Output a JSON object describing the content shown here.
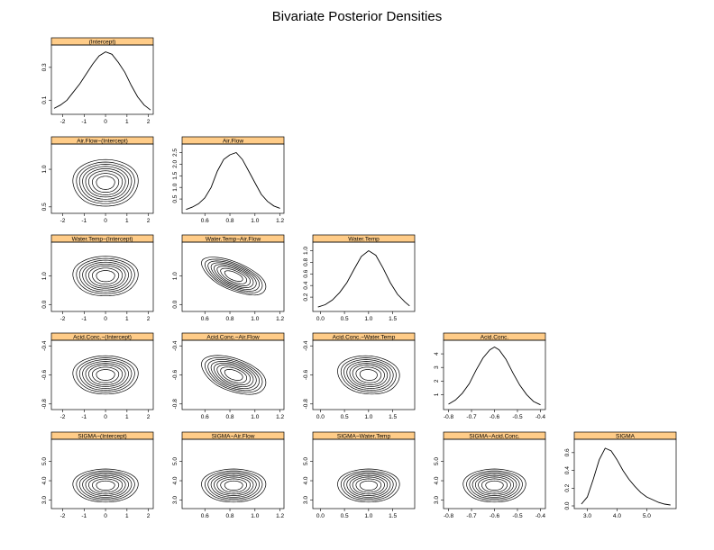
{
  "page": {
    "title": "Bivariate Posterior Densities"
  },
  "colors": {
    "strip": "#FFCC88",
    "line": "#000000",
    "background": "#FFFFFF"
  },
  "variables": [
    {
      "key": "intercept",
      "label": "(Intercept)",
      "ticks": [
        -2,
        -1,
        0,
        1,
        2
      ],
      "tick_labels": [
        "-2",
        "-1",
        "0",
        "1",
        "2"
      ],
      "xlim": [
        -2.4,
        2.1
      ],
      "density_ticks": [
        0.1,
        0.3
      ],
      "density_tick_labels": [
        "0.1",
        "0.3"
      ],
      "density_ylim": [
        0.03,
        0.42
      ]
    },
    {
      "key": "airflow",
      "label": "Air.Flow",
      "ticks": [
        0.6,
        0.8,
        1.0,
        1.2
      ],
      "tick_labels": [
        "0.6",
        "0.8",
        "1.0",
        "1.2"
      ],
      "xlim": [
        0.44,
        1.21
      ],
      "density_ticks": [
        0.5,
        1.0,
        1.5,
        2.0,
        2.5
      ],
      "density_tick_labels": [
        "0.5",
        "1.0",
        "1.5",
        "2.0",
        "2.5"
      ],
      "density_ylim": [
        0.0,
        2.75
      ]
    },
    {
      "key": "watertemp",
      "label": "Water.Temp",
      "ticks": [
        0.0,
        0.5,
        1.0,
        1.5
      ],
      "tick_labels": [
        "0.0",
        "0.5",
        "1.0",
        "1.5"
      ],
      "xlim": [
        -0.1,
        1.9
      ],
      "density_ticks": [
        0.2,
        0.4,
        0.6,
        0.8,
        1.0
      ],
      "density_tick_labels": [
        "0.2",
        "0.4",
        "0.6",
        "0.8",
        "1.0"
      ],
      "density_ylim": [
        0.0,
        1.1
      ]
    },
    {
      "key": "acidconc",
      "label": "Acid.Conc.",
      "ticks": [
        -0.8,
        -0.7,
        -0.6,
        -0.5,
        -0.4
      ],
      "tick_labels": [
        "-0.8",
        "-0.7",
        "-0.6",
        "-0.5",
        "-0.4"
      ],
      "xlim": [
        -0.81,
        -0.39
      ],
      "density_ticks": [
        1,
        2,
        3,
        4
      ],
      "density_tick_labels": [
        "1",
        "2",
        "3",
        "4"
      ],
      "density_ylim": [
        0.1,
        4.8
      ]
    },
    {
      "key": "sigma",
      "label": "SIGMA",
      "ticks": [
        3.0,
        4.0,
        5.0
      ],
      "tick_labels": [
        "3.0",
        "4.0",
        "5.0"
      ],
      "xlim": [
        2.65,
        5.9
      ],
      "density_ticks": [
        0.0,
        0.2,
        0.4,
        0.6
      ],
      "density_tick_labels": [
        "0.0",
        "0.2",
        "0.4",
        "0.6"
      ],
      "density_ylim": [
        0.0,
        0.72
      ]
    }
  ],
  "chart_data": {
    "type": "pairs-density",
    "title": "Bivariate Posterior Densities",
    "diagonal": [
      {
        "label": "(Intercept)",
        "x": [
          -2.4,
          -2.1,
          -1.8,
          -1.5,
          -1.2,
          -0.9,
          -0.6,
          -0.3,
          0.0,
          0.3,
          0.6,
          0.9,
          1.2,
          1.5,
          1.8,
          2.1
        ],
        "y": [
          0.05,
          0.07,
          0.1,
          0.15,
          0.2,
          0.26,
          0.32,
          0.37,
          0.395,
          0.38,
          0.33,
          0.27,
          0.19,
          0.12,
          0.07,
          0.04
        ]
      },
      {
        "label": "Air.Flow",
        "x": [
          0.45,
          0.5,
          0.55,
          0.6,
          0.65,
          0.7,
          0.75,
          0.8,
          0.85,
          0.9,
          0.95,
          1.0,
          1.05,
          1.1,
          1.15,
          1.2
        ],
        "y": [
          0.05,
          0.15,
          0.3,
          0.55,
          1.0,
          1.7,
          2.2,
          2.4,
          2.5,
          2.2,
          1.7,
          1.2,
          0.7,
          0.4,
          0.2,
          0.1
        ]
      },
      {
        "label": "Water.Temp",
        "x": [
          -0.05,
          0.1,
          0.25,
          0.4,
          0.55,
          0.7,
          0.85,
          1.0,
          1.15,
          1.3,
          1.45,
          1.6,
          1.75,
          1.85
        ],
        "y": [
          0.03,
          0.07,
          0.15,
          0.28,
          0.45,
          0.68,
          0.9,
          1.0,
          0.92,
          0.7,
          0.45,
          0.25,
          0.12,
          0.05
        ]
      },
      {
        "label": "Acid.Conc.",
        "x": [
          -0.8,
          -0.77,
          -0.74,
          -0.71,
          -0.68,
          -0.65,
          -0.62,
          -0.6,
          -0.58,
          -0.55,
          -0.52,
          -0.49,
          -0.46,
          -0.43,
          -0.4
        ],
        "y": [
          0.3,
          0.6,
          1.1,
          1.8,
          2.8,
          3.7,
          4.3,
          4.5,
          4.3,
          3.6,
          2.6,
          1.7,
          1.0,
          0.5,
          0.25
        ]
      },
      {
        "label": "SIGMA",
        "x": [
          2.8,
          3.0,
          3.2,
          3.4,
          3.6,
          3.8,
          4.0,
          4.2,
          4.4,
          4.6,
          4.8,
          5.0,
          5.2,
          5.4,
          5.6,
          5.8
        ],
        "y": [
          0.02,
          0.1,
          0.3,
          0.52,
          0.65,
          0.62,
          0.52,
          0.4,
          0.3,
          0.22,
          0.15,
          0.1,
          0.07,
          0.04,
          0.02,
          0.01
        ]
      }
    ],
    "pairs": [
      {
        "row": 1,
        "col": 0,
        "label": "Air.Flow~(Intercept)",
        "center": [
          0.0,
          0.82
        ],
        "sd": [
          0.95,
          0.2
        ],
        "rho": 0.0,
        "ylim": [
          0.45,
          1.3
        ],
        "ticks": [
          0.5,
          1.0
        ],
        "tick_labels": [
          "0.5",
          "1.0"
        ]
      },
      {
        "row": 2,
        "col": 0,
        "label": "Water.Temp~(Intercept)",
        "center": [
          0.0,
          1.0
        ],
        "sd": [
          0.95,
          0.45
        ],
        "rho": 0.0,
        "ylim": [
          -0.15,
          2.1
        ],
        "ticks": [
          0.0,
          1.0
        ],
        "tick_labels": [
          "0.0",
          "1.0"
        ]
      },
      {
        "row": 2,
        "col": 1,
        "label": "Water.Temp~Air.Flow",
        "center": [
          0.83,
          1.0
        ],
        "sd": [
          0.16,
          0.42
        ],
        "rho": -0.6,
        "ylim": [
          -0.15,
          2.1
        ],
        "ticks": [
          0.0,
          1.0
        ],
        "tick_labels": [
          "0.0",
          "1.0"
        ]
      },
      {
        "row": 3,
        "col": 0,
        "label": "Acid.Conc.~(Intercept)",
        "center": [
          0.0,
          -0.6
        ],
        "sd": [
          0.95,
          0.085
        ],
        "rho": 0.0,
        "ylim": [
          -0.82,
          -0.38
        ],
        "ticks": [
          -0.8,
          -0.6,
          -0.4
        ],
        "tick_labels": [
          "-0.8",
          "-0.6",
          "-0.4"
        ]
      },
      {
        "row": 3,
        "col": 1,
        "label": "Acid.Conc.~Air.Flow",
        "center": [
          0.83,
          -0.6
        ],
        "sd": [
          0.16,
          0.085
        ],
        "rho": -0.45,
        "ylim": [
          -0.82,
          -0.38
        ],
        "ticks": [
          -0.8,
          -0.6,
          -0.4
        ],
        "tick_labels": [
          "-0.8",
          "-0.6",
          "-0.4"
        ]
      },
      {
        "row": 3,
        "col": 2,
        "label": "Acid.Conc.~Water.Temp",
        "center": [
          1.0,
          -0.6
        ],
        "sd": [
          0.4,
          0.085
        ],
        "rho": -0.1,
        "ylim": [
          -0.82,
          -0.38
        ],
        "ticks": [
          -0.8,
          -0.6,
          -0.4
        ],
        "tick_labels": [
          "-0.8",
          "-0.6",
          "-0.4"
        ]
      },
      {
        "row": 4,
        "col": 0,
        "label": "SIGMA~(Intercept)",
        "center": [
          0.0,
          3.75
        ],
        "sd": [
          0.95,
          0.55
        ],
        "rho": 0.0,
        "ylim": [
          2.7,
          6.0
        ],
        "ticks": [
          3.0,
          4.0,
          5.0
        ],
        "tick_labels": [
          "3.0",
          "4.0",
          "5.0"
        ]
      },
      {
        "row": 4,
        "col": 1,
        "label": "SIGMA~Air.Flow",
        "center": [
          0.83,
          3.75
        ],
        "sd": [
          0.16,
          0.55
        ],
        "rho": 0.0,
        "ylim": [
          2.7,
          6.0
        ],
        "ticks": [
          3.0,
          4.0,
          5.0
        ],
        "tick_labels": [
          "3.0",
          "4.0",
          "5.0"
        ]
      },
      {
        "row": 4,
        "col": 2,
        "label": "SIGMA~Water.Temp",
        "center": [
          1.0,
          3.75
        ],
        "sd": [
          0.4,
          0.55
        ],
        "rho": 0.0,
        "ylim": [
          2.7,
          6.0
        ],
        "ticks": [
          3.0,
          4.0,
          5.0
        ],
        "tick_labels": [
          "3.0",
          "4.0",
          "5.0"
        ]
      },
      {
        "row": 4,
        "col": 3,
        "label": "SIGMA~Acid.Conc.",
        "center": [
          -0.6,
          3.75
        ],
        "sd": [
          0.085,
          0.55
        ],
        "rho": 0.0,
        "ylim": [
          2.7,
          6.0
        ],
        "ticks": [
          3.0,
          4.0,
          5.0
        ],
        "tick_labels": [
          "3.0",
          "4.0",
          "5.0"
        ]
      }
    ],
    "contour_levels": [
      0.9,
      1.3,
      1.65,
      1.95,
      2.25,
      2.55,
      2.85,
      3.2
    ],
    "grid": false
  }
}
